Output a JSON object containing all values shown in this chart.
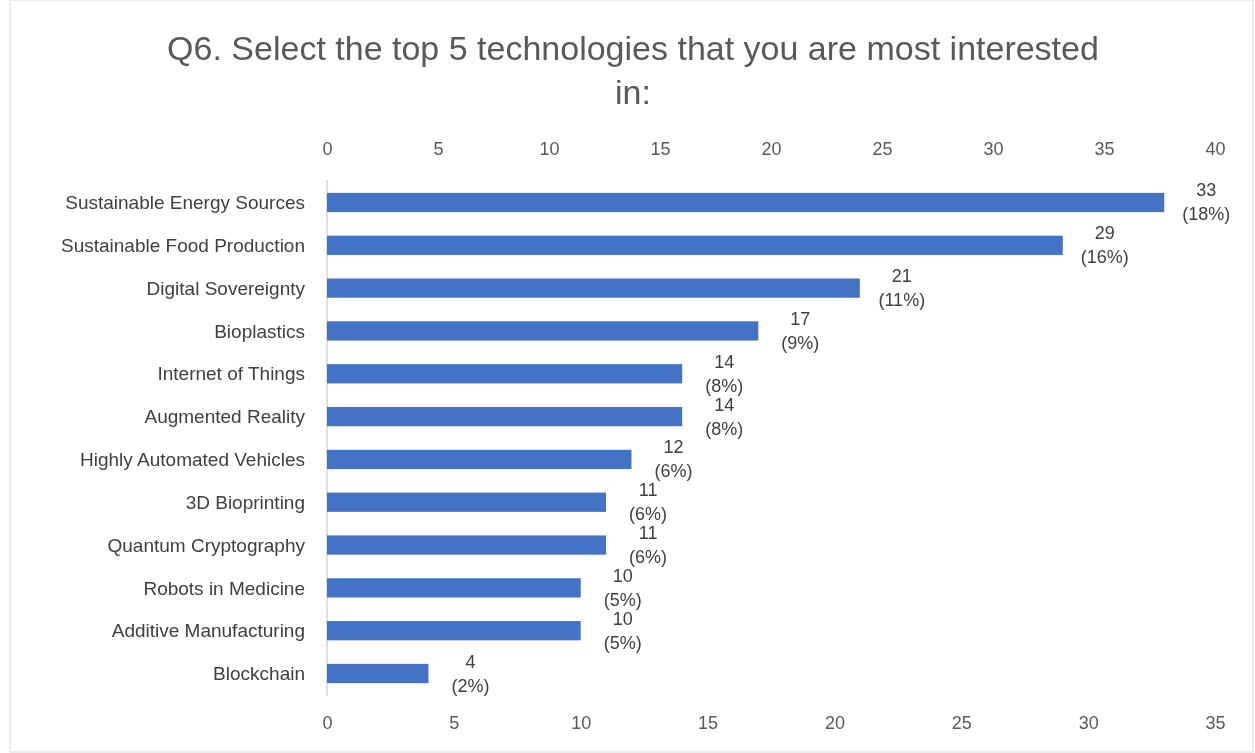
{
  "chart_data": {
    "type": "bar",
    "orientation": "horizontal",
    "title": "Q6. Select the top 5 technologies that you are most interested in:",
    "categories": [
      "Sustainable Energy Sources",
      "Sustainable Food Production",
      "Digital Sovereignty",
      "Bioplastics",
      "Internet of Things",
      "Augmented Reality",
      "Highly Automated Vehicles",
      "3D Bioprinting",
      "Quantum Cryptography",
      "Robots in Medicine",
      "Additive Manufacturing",
      "Blockchain"
    ],
    "series": [
      {
        "color": "#4472c4",
        "values": [
          33,
          29,
          21,
          17,
          14,
          14,
          12,
          11,
          11,
          10,
          10,
          4
        ],
        "value_labels": [
          "33 (18%)",
          "29 (16%)",
          "21 (11%)",
          "17 (9%)",
          "14 (8%)",
          "14 (8%)",
          "12 (6%)",
          "11 (6%)",
          "11 (6%)",
          "10 (5%)",
          "10 (5%)",
          "4 (2%)"
        ]
      }
    ],
    "xlim": [
      0,
      35
    ],
    "xticks": [
      0,
      5,
      10,
      15,
      20,
      25,
      30,
      35
    ],
    "x2lim": [
      0,
      40
    ],
    "x2ticks": [
      0,
      5,
      10,
      15,
      20,
      25,
      30,
      35,
      40
    ],
    "grid": false
  }
}
